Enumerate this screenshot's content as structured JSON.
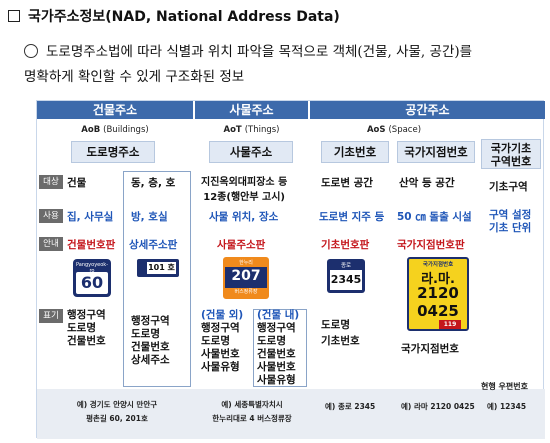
{
  "title": "국가주소정보(NAD, National Address Data)",
  "intro": {
    "line1": "도로명주소법에 따라 식별과 위치 파악을 목적으로 객체(건물, 사물, 공간)를",
    "line2": "명확하게 확인할 수 있게 구조화된 정보"
  },
  "row_tags": {
    "target": "대상",
    "usage": "사용",
    "guide": "안내",
    "notation": "표기"
  },
  "columns": {
    "building": {
      "header": "건물주소",
      "sub_abbr": "AoB",
      "sub_en": "(Buildings)",
      "type": "도로명주소",
      "target_left": "건물",
      "target_right": "동, 층, 호",
      "usage_left": "집, 사무실",
      "usage_right": "방, 호실",
      "guide_left": "건물번호판",
      "guide_right": "상세주소판",
      "plate_left_road": "Pangyoyeok-ro",
      "plate_left_num": "60",
      "plate_right_num": "101 호",
      "notation_left": [
        "행정구역",
        "도로명",
        "건물번호"
      ],
      "notation_right": [
        "행정구역",
        "도로명",
        "건물번호",
        "상세주소"
      ],
      "example_line1": "예) 경기도 안양시 만안구",
      "example_line2": "평촌길 60, 201호"
    },
    "thing": {
      "header": "사물주소",
      "sub_abbr": "AoT",
      "sub_en": "(Things)",
      "type": "사물주소",
      "target": "지진옥외대피장소 등",
      "target2": "12종(행안부 고시)",
      "usage": "사물 위치, 장소",
      "guide": "사물주소판",
      "plate_top": "한누리",
      "plate_num": "207",
      "plate_bottom": "버스정류장",
      "notation_left_head": "(건물 외)",
      "notation_left": [
        "행정구역",
        "도로명",
        "사물번호",
        "사물유형"
      ],
      "notation_right_head": "(건물 내)",
      "notation_right": [
        "행정구역",
        "도로명",
        "건물번호",
        "사물번호",
        "사물유형"
      ],
      "example_line1": "예) 세종특별자치시",
      "example_line2": "한누리대로 4 버스정류장"
    },
    "space": {
      "header": "공간주소",
      "sub_abbr": "AoS",
      "sub_en": "(Space)",
      "basic": {
        "type": "기초번호",
        "target": "도로변 공간",
        "usage": "도로변 지주 등",
        "guide": "기초번호판",
        "plate_top": "종로",
        "plate_num": "2345",
        "notation": [
          "도로명",
          "기초번호"
        ],
        "example": "예) 종로 2345"
      },
      "grid": {
        "type": "국가지점번호",
        "target": "산악 등 공간",
        "usage": "50 ㎝ 돌출 시설",
        "guide": "국가지점번호판",
        "plate_top": "국가지점번호",
        "plate_line1": "라.마.",
        "plate_line2": "2120",
        "plate_line3": "0425",
        "plate_badge": "119",
        "notation": [
          "국가지점번호"
        ],
        "example": "예) 라마 2120 0425"
      },
      "zone": {
        "type_line1": "국가기초",
        "type_line2": "구역번호",
        "target": "기초구역",
        "usage_line1": "구역 설정",
        "usage_line2": "기초 단위",
        "notation": "현행 우편번호",
        "example": "예) 12345"
      }
    }
  },
  "colors": {
    "header_blue": "#3d6aab",
    "type_box": "#e1e9f4",
    "highlight_blue": "#1f56b8",
    "plate_orange": "#f08a1c",
    "plate_yellow": "#f5d21e",
    "plate_navy": "#1c2f6e"
  }
}
